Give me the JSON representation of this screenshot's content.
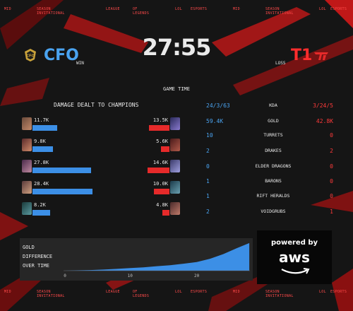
{
  "ticker_top": [
    "MID",
    "SEASON INVITATIONAL",
    "LEAGUE",
    "OF LEGENDS",
    "LOL",
    "ESPORTS",
    "MID",
    "SEASON INVITATIONAL",
    "LOL",
    "ESPORTS"
  ],
  "ticker_bottom": [
    "MID",
    "SEASON INVITATIONAL",
    "LEAGUE",
    "OF LEGENDS",
    "LOL",
    "ESPORTS",
    "MID",
    "SEASON INVITATIONAL",
    "LOL",
    "ESPORTS"
  ],
  "header": {
    "left_team": "CFO",
    "left_result": "WIN",
    "game_clock": "27:55",
    "right_team": "T1",
    "right_result": "LOSS",
    "game_time_label": "GAME TIME"
  },
  "colors": {
    "blue": "#3c8fe6",
    "red": "#e62a2a"
  },
  "damage": {
    "title": "DAMAGE DEALT TO CHAMPIONS",
    "rows": [
      {
        "left": "11.7K",
        "left_value": 11.7,
        "right": "13.5K",
        "right_value": 13.5
      },
      {
        "left": "9.8K",
        "left_value": 9.8,
        "right": "5.6K",
        "right_value": 5.6
      },
      {
        "left": "27.8K",
        "left_value": 27.8,
        "right": "14.6K",
        "right_value": 14.6
      },
      {
        "left": "28.4K",
        "left_value": 28.4,
        "right": "10.0K",
        "right_value": 10.0
      },
      {
        "left": "8.2K",
        "left_value": 8.2,
        "right": "4.8K",
        "right_value": 4.8
      }
    ]
  },
  "stats": [
    {
      "label": "KDA",
      "left": "24/3/63",
      "right": "3/24/5"
    },
    {
      "label": "GOLD",
      "left": "59.4K",
      "right": "42.8K"
    },
    {
      "label": "TURRETS",
      "left": "10",
      "right": "0"
    },
    {
      "label": "DRAKES",
      "left": "2",
      "right": "2"
    },
    {
      "label": "ELDER DRAGONS",
      "left": "0",
      "right": "0"
    },
    {
      "label": "BARONS",
      "left": "1",
      "right": "0"
    },
    {
      "label": "RIFT HERALDS",
      "left": "1",
      "right": "0"
    },
    {
      "label": "VOIDGRUBS",
      "left": "2",
      "right": "1"
    }
  ],
  "gold_difference": {
    "label_lines": [
      "GOLD",
      "DIFFERENCE",
      "OVER TIME"
    ],
    "chart_data": {
      "type": "area",
      "x": [
        0,
        2,
        4,
        6,
        8,
        10,
        12,
        14,
        16,
        18,
        20,
        22,
        24,
        26,
        27.9
      ],
      "values": [
        0,
        200,
        400,
        700,
        1100,
        1600,
        2000,
        2700,
        3300,
        4200,
        5200,
        7200,
        10000,
        13500,
        16600
      ],
      "xticks": [
        "0",
        "10",
        "20"
      ],
      "xtick_values": [
        0,
        10,
        20
      ],
      "xlim": [
        0,
        28
      ],
      "ylim": [
        0,
        17000
      ]
    }
  },
  "sponsor": {
    "line1": "powered by",
    "logo": "aws"
  }
}
